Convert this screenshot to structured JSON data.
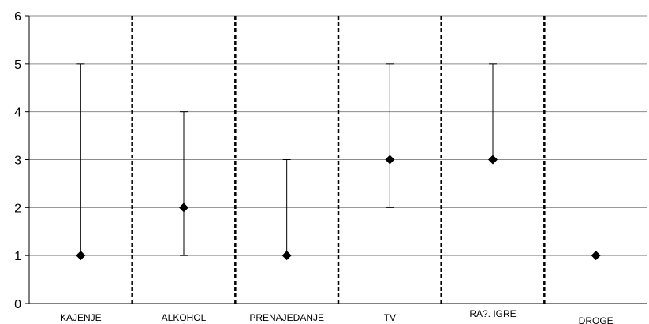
{
  "chart_data": {
    "type": "scatter",
    "title": "",
    "xlabel": "",
    "ylabel": "",
    "ylim": [
      0,
      6
    ],
    "yticks": [
      0,
      1,
      2,
      3,
      4,
      5,
      6
    ],
    "grid": true,
    "legend": "none",
    "categories": [
      "KAJENJE",
      "ALKOHOL",
      "PRENAJEDANJE",
      "TV",
      "RA?. IGRE",
      "DROGE"
    ],
    "series": [
      {
        "values": [
          1,
          2,
          1,
          3,
          3,
          1
        ],
        "low": [
          1,
          1,
          1,
          2,
          3,
          1
        ],
        "high": [
          5,
          4,
          3,
          5,
          5,
          1
        ]
      }
    ],
    "separators_after": [
      0,
      1,
      2,
      3,
      4
    ],
    "colors": {
      "marker": "#000000",
      "grid": "#8c8c8c",
      "axis": "#000000",
      "separator": "#000000"
    }
  }
}
